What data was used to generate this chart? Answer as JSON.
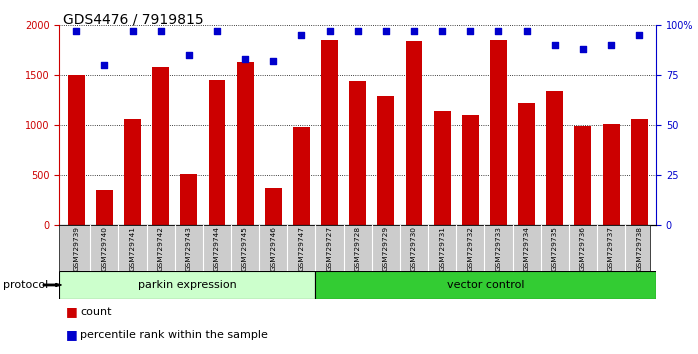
{
  "title": "GDS4476 / 7919815",
  "categories": [
    "GSM729739",
    "GSM729740",
    "GSM729741",
    "GSM729742",
    "GSM729743",
    "GSM729744",
    "GSM729745",
    "GSM729746",
    "GSM729747",
    "GSM729727",
    "GSM729728",
    "GSM729729",
    "GSM729730",
    "GSM729731",
    "GSM729732",
    "GSM729733",
    "GSM729734",
    "GSM729735",
    "GSM729736",
    "GSM729737",
    "GSM729738"
  ],
  "bar_values": [
    1500,
    350,
    1060,
    1580,
    510,
    1450,
    1630,
    370,
    980,
    1850,
    1440,
    1290,
    1840,
    1140,
    1100,
    1850,
    1220,
    1340,
    990,
    1010,
    1060
  ],
  "percentile_values": [
    97,
    80,
    97,
    97,
    85,
    97,
    83,
    82,
    95,
    97,
    97,
    97,
    97,
    97,
    97,
    97,
    97,
    90,
    88,
    90,
    95
  ],
  "bar_color": "#cc0000",
  "percentile_color": "#0000cc",
  "bar_width": 0.6,
  "ylim_left": [
    0,
    2000
  ],
  "ylim_right": [
    0,
    100
  ],
  "yticks_left": [
    0,
    500,
    1000,
    1500,
    2000
  ],
  "yticks_right": [
    0,
    25,
    50,
    75,
    100
  ],
  "ytick_labels_right": [
    "0",
    "25",
    "50",
    "75",
    "100%"
  ],
  "group1_label": "parkin expression",
  "group2_label": "vector control",
  "group1_count": 9,
  "group2_count": 12,
  "group1_color": "#ccffcc",
  "group2_color": "#33cc33",
  "protocol_label": "protocol",
  "legend_count_label": "count",
  "legend_pct_label": "percentile rank within the sample",
  "bg_color": "#ffffff",
  "xlabel_area_color": "#cccccc",
  "title_fontsize": 10,
  "tick_fontsize": 7,
  "label_fontsize": 8
}
